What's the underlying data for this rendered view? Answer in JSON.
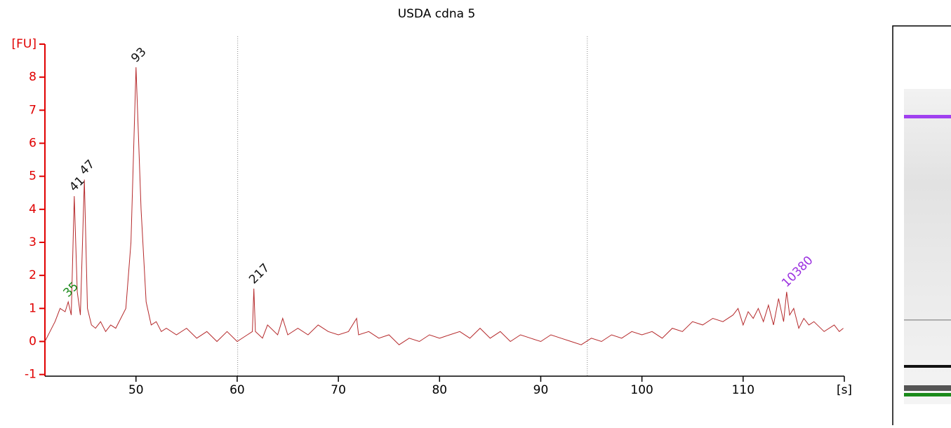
{
  "chart_data": {
    "type": "line",
    "title": "USDA cdna 5",
    "x": [
      41,
      41.5,
      42,
      42.5,
      43,
      43.3,
      43.6,
      43.9,
      44.2,
      44.5,
      44.9,
      45.2,
      45.6,
      46,
      46.5,
      47,
      47.5,
      48,
      48.5,
      49,
      49.5,
      50,
      50.5,
      51,
      51.5,
      52,
      52.5,
      53,
      54,
      55,
      56,
      57,
      58,
      59,
      60,
      61,
      61.5,
      61.65,
      61.8,
      62.5,
      63,
      64,
      64.5,
      65,
      66,
      67,
      68,
      69,
      70,
      71,
      71.8,
      72,
      73,
      74,
      75,
      76,
      77,
      78,
      79,
      80,
      81,
      82,
      83,
      84,
      85,
      86,
      87,
      88,
      89,
      90,
      91,
      92,
      93,
      94,
      95,
      96,
      97,
      98,
      99,
      100,
      101,
      102,
      103,
      104,
      105,
      106,
      107,
      108,
      109,
      109.5,
      110,
      110.5,
      111,
      111.5,
      112,
      112.5,
      113,
      113.5,
      114,
      114.3,
      114.6,
      115,
      115.5,
      116,
      116.5,
      117,
      118,
      119,
      119.5,
      119.9
    ],
    "values": [
      0.0,
      0.3,
      0.6,
      1.0,
      0.9,
      1.2,
      0.8,
      4.4,
      1.5,
      0.8,
      4.9,
      1.0,
      0.5,
      0.4,
      0.6,
      0.3,
      0.5,
      0.4,
      0.7,
      1.0,
      3.0,
      8.3,
      4.0,
      1.2,
      0.5,
      0.6,
      0.3,
      0.4,
      0.2,
      0.4,
      0.1,
      0.3,
      0.0,
      0.3,
      0.0,
      0.2,
      0.3,
      1.6,
      0.3,
      0.1,
      0.5,
      0.2,
      0.7,
      0.2,
      0.4,
      0.2,
      0.5,
      0.3,
      0.2,
      0.3,
      0.7,
      0.2,
      0.3,
      0.1,
      0.2,
      -0.1,
      0.1,
      0.0,
      0.2,
      0.1,
      0.2,
      0.3,
      0.1,
      0.4,
      0.1,
      0.3,
      0.0,
      0.2,
      0.1,
      0.0,
      0.2,
      0.1,
      0.0,
      -0.1,
      0.1,
      0.0,
      0.2,
      0.1,
      0.3,
      0.2,
      0.3,
      0.1,
      0.4,
      0.3,
      0.6,
      0.5,
      0.7,
      0.6,
      0.8,
      1.0,
      0.5,
      0.9,
      0.7,
      1.0,
      0.6,
      1.1,
      0.5,
      1.3,
      0.6,
      1.5,
      0.8,
      1.0,
      0.4,
      0.7,
      0.5,
      0.6,
      0.3,
      0.5,
      0.3,
      0.4
    ],
    "color": "#b5292b",
    "axis_color": "#e00000",
    "xlim": [
      41,
      120
    ],
    "ylim": [
      -1.05,
      9
    ],
    "xticks": [
      50,
      60,
      70,
      80,
      90,
      100,
      110,
      {
        "value": 120,
        "label": "[s]"
      }
    ],
    "yticks": [
      -1,
      0,
      1,
      2,
      3,
      4,
      5,
      6,
      7,
      8,
      {
        "value": 9,
        "label": "[FU]"
      }
    ],
    "vlines": [
      60.05,
      94.6
    ],
    "annotations": [
      {
        "label": "35",
        "x": 43.3,
        "y": 1.2,
        "color": "#1a8a1a"
      },
      {
        "label": "41",
        "x": 43.9,
        "y": 4.4,
        "color": "#111111"
      },
      {
        "label": "47",
        "x": 44.9,
        "y": 4.9,
        "color": "#111111"
      },
      {
        "label": "93",
        "x": 50,
        "y": 8.3,
        "color": "#111111"
      },
      {
        "label": "217",
        "x": 61.65,
        "y": 1.6,
        "color": "#111111"
      },
      {
        "label": "10380",
        "x": 114.3,
        "y": 1.5,
        "color": "#9b30e0"
      }
    ]
  }
}
